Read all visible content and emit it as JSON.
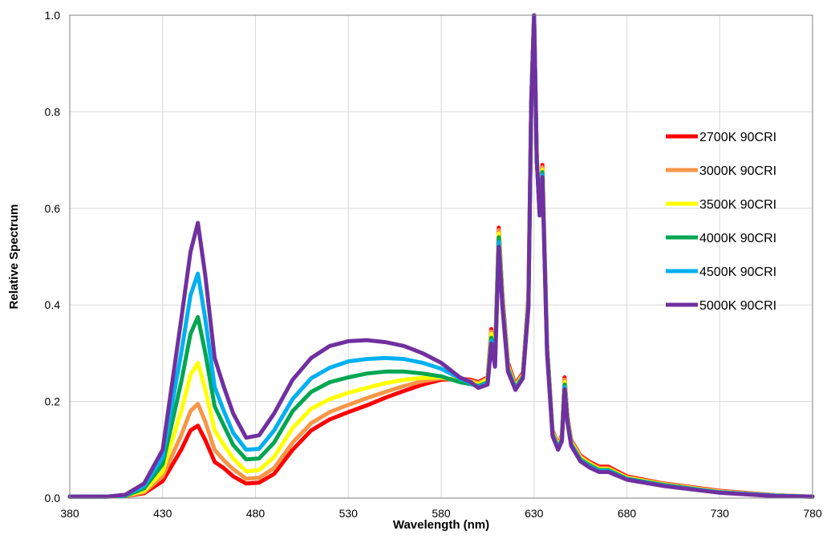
{
  "chart_data": {
    "type": "line",
    "title": "",
    "xlabel": "Wavelength (nm)",
    "ylabel": "Relative Spectrum",
    "xlim": [
      380,
      780
    ],
    "ylim": [
      0,
      1.0
    ],
    "xticks": [
      "380",
      "430",
      "480",
      "530",
      "580",
      "630",
      "680",
      "730",
      "780"
    ],
    "yticks": [
      "0.0",
      "0.2",
      "0.4",
      "0.6",
      "0.8",
      "1.0"
    ],
    "grid": true,
    "legend": "right",
    "x": [
      380,
      400,
      410,
      420,
      430,
      440,
      445,
      449,
      453,
      458,
      463,
      468,
      475,
      482,
      490,
      500,
      510,
      520,
      530,
      540,
      550,
      560,
      570,
      580,
      590,
      596,
      600,
      605,
      607,
      609,
      611,
      613,
      616,
      620,
      624,
      627,
      628.5,
      630,
      631.5,
      633,
      634.5,
      637,
      640,
      643,
      645,
      646.5,
      648,
      650,
      655,
      660,
      665,
      670,
      680,
      700,
      730,
      760,
      780
    ],
    "series": [
      {
        "name": "2700K 90CRI",
        "color": "#ff0000",
        "values": [
          0.003,
          0.003,
          0.004,
          0.01,
          0.035,
          0.1,
          0.14,
          0.15,
          0.12,
          0.075,
          0.062,
          0.045,
          0.03,
          0.032,
          0.05,
          0.1,
          0.14,
          0.163,
          0.178,
          0.192,
          0.208,
          0.222,
          0.235,
          0.245,
          0.247,
          0.245,
          0.24,
          0.25,
          0.35,
          0.29,
          0.56,
          0.42,
          0.28,
          0.235,
          0.26,
          0.42,
          0.82,
          1.0,
          0.7,
          0.6,
          0.69,
          0.32,
          0.14,
          0.11,
          0.13,
          0.25,
          0.17,
          0.12,
          0.088,
          0.075,
          0.065,
          0.065,
          0.045,
          0.03,
          0.015,
          0.006,
          0.003
        ]
      },
      {
        "name": "3000K 90CRI",
        "color": "#f79646",
        "values": [
          0.003,
          0.003,
          0.004,
          0.012,
          0.045,
          0.13,
          0.18,
          0.195,
          0.158,
          0.1,
          0.078,
          0.06,
          0.04,
          0.042,
          0.062,
          0.115,
          0.155,
          0.178,
          0.193,
          0.207,
          0.22,
          0.232,
          0.242,
          0.248,
          0.246,
          0.243,
          0.238,
          0.248,
          0.345,
          0.288,
          0.555,
          0.415,
          0.275,
          0.232,
          0.257,
          0.415,
          0.82,
          1.0,
          0.7,
          0.6,
          0.685,
          0.318,
          0.138,
          0.108,
          0.128,
          0.245,
          0.168,
          0.118,
          0.086,
          0.073,
          0.062,
          0.062,
          0.043,
          0.029,
          0.014,
          0.006,
          0.003
        ]
      },
      {
        "name": "3500K 90CRI",
        "color": "#ffff00",
        "values": [
          0.003,
          0.003,
          0.005,
          0.015,
          0.055,
          0.18,
          0.255,
          0.28,
          0.225,
          0.14,
          0.11,
          0.082,
          0.055,
          0.058,
          0.085,
          0.145,
          0.185,
          0.205,
          0.218,
          0.228,
          0.238,
          0.245,
          0.249,
          0.25,
          0.243,
          0.24,
          0.235,
          0.245,
          0.34,
          0.285,
          0.548,
          0.41,
          0.272,
          0.23,
          0.255,
          0.41,
          0.82,
          1.0,
          0.7,
          0.598,
          0.68,
          0.315,
          0.135,
          0.106,
          0.125,
          0.24,
          0.165,
          0.115,
          0.083,
          0.07,
          0.06,
          0.06,
          0.042,
          0.028,
          0.013,
          0.005,
          0.003
        ]
      },
      {
        "name": "4000K 90CRI",
        "color": "#00a651",
        "values": [
          0.003,
          0.003,
          0.005,
          0.02,
          0.07,
          0.24,
          0.34,
          0.375,
          0.3,
          0.19,
          0.15,
          0.11,
          0.08,
          0.082,
          0.115,
          0.18,
          0.22,
          0.24,
          0.25,
          0.258,
          0.262,
          0.262,
          0.258,
          0.252,
          0.24,
          0.236,
          0.232,
          0.24,
          0.332,
          0.28,
          0.54,
          0.405,
          0.268,
          0.228,
          0.252,
          0.405,
          0.82,
          1.0,
          0.7,
          0.595,
          0.675,
          0.31,
          0.132,
          0.104,
          0.122,
          0.235,
          0.162,
          0.112,
          0.08,
          0.068,
          0.058,
          0.058,
          0.04,
          0.027,
          0.012,
          0.005,
          0.003
        ]
      },
      {
        "name": "4500K 90CRI",
        "color": "#00b0f0",
        "values": [
          0.003,
          0.003,
          0.006,
          0.025,
          0.085,
          0.3,
          0.42,
          0.465,
          0.37,
          0.23,
          0.18,
          0.135,
          0.1,
          0.102,
          0.14,
          0.205,
          0.248,
          0.27,
          0.283,
          0.288,
          0.29,
          0.288,
          0.28,
          0.268,
          0.248,
          0.238,
          0.23,
          0.238,
          0.325,
          0.275,
          0.53,
          0.4,
          0.265,
          0.226,
          0.25,
          0.4,
          0.82,
          1.0,
          0.7,
          0.59,
          0.67,
          0.305,
          0.13,
          0.102,
          0.12,
          0.23,
          0.16,
          0.11,
          0.078,
          0.065,
          0.056,
          0.056,
          0.039,
          0.026,
          0.012,
          0.005,
          0.003
        ]
      },
      {
        "name": "5000K 90CRI",
        "color": "#7030a0",
        "values": [
          0.003,
          0.003,
          0.007,
          0.03,
          0.1,
          0.37,
          0.51,
          0.57,
          0.46,
          0.29,
          0.23,
          0.175,
          0.125,
          0.13,
          0.175,
          0.245,
          0.29,
          0.315,
          0.325,
          0.327,
          0.323,
          0.315,
          0.3,
          0.28,
          0.25,
          0.24,
          0.228,
          0.235,
          0.32,
          0.272,
          0.52,
          0.395,
          0.262,
          0.224,
          0.248,
          0.395,
          0.82,
          1.0,
          0.7,
          0.585,
          0.665,
          0.3,
          0.128,
          0.1,
          0.118,
          0.225,
          0.157,
          0.108,
          0.076,
          0.063,
          0.054,
          0.054,
          0.038,
          0.025,
          0.011,
          0.004,
          0.003
        ]
      }
    ]
  }
}
